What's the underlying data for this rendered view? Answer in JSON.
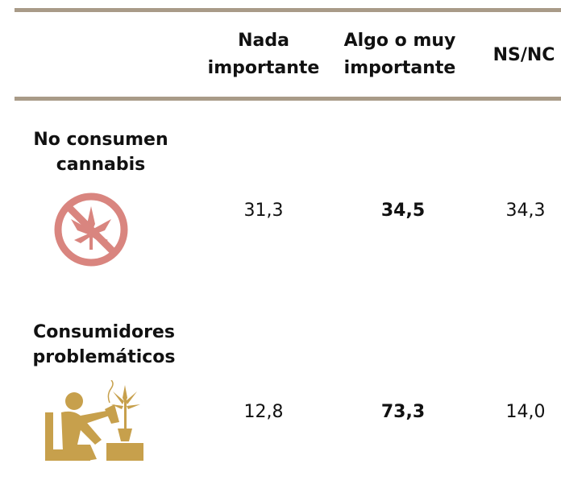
{
  "table": {
    "header": [
      "Nada importante",
      "Algo o muy importante",
      "NS/NC"
    ],
    "rows": [
      [
        "No consumen cannabis",
        "31,3",
        "34,5",
        "34,3"
      ],
      [
        "Consumidores problemáticos",
        "12,8",
        "73,3",
        "14,0"
      ]
    ]
  }
}
